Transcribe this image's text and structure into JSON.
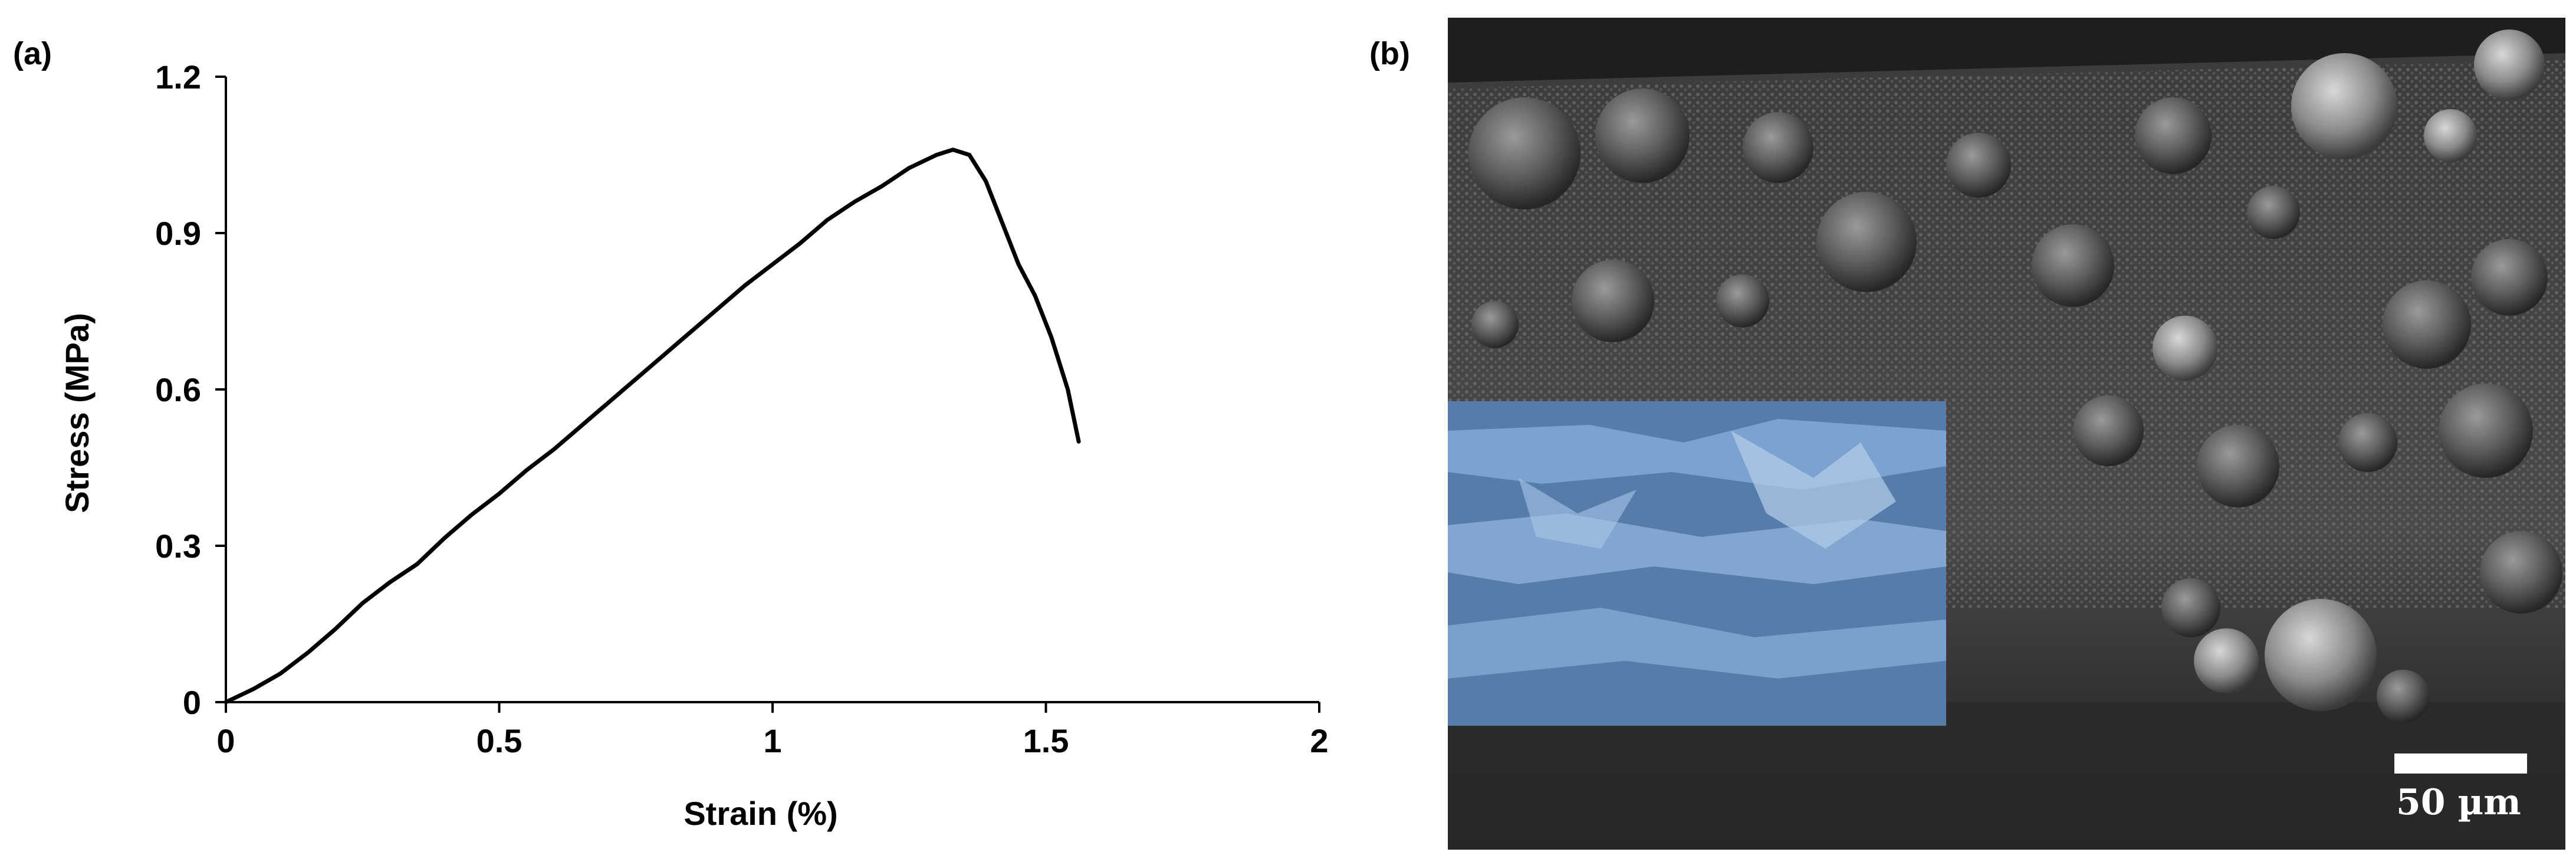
{
  "panel_a_label": "(a)",
  "panel_b_label": "(b)",
  "scale_bar_label": "50 µm",
  "chart_data": {
    "type": "line",
    "title": "",
    "xlabel": "Strain (%)",
    "ylabel": "Stress (MPa)",
    "xlim": [
      0,
      2
    ],
    "ylim": [
      0,
      1.2
    ],
    "xticks": [
      0,
      0.5,
      1,
      1.5,
      2
    ],
    "xtick_labels": [
      "0",
      "0.5",
      "1",
      "1.5",
      "2"
    ],
    "yticks": [
      0,
      0.3,
      0.6,
      0.9,
      1.2
    ],
    "ytick_labels": [
      "0",
      "0.3",
      "0.6",
      "0.9",
      "1.2"
    ],
    "grid": false,
    "line_color": "#000000",
    "series": [
      {
        "x": [
          0,
          0.05,
          0.1,
          0.15,
          0.2,
          0.25,
          0.3,
          0.35,
          0.4,
          0.45,
          0.5,
          0.55,
          0.6,
          0.65,
          0.7,
          0.75,
          0.8,
          0.85,
          0.9,
          0.95,
          1.0,
          1.05,
          1.1,
          1.15,
          1.2,
          1.25,
          1.3,
          1.33,
          1.36,
          1.39,
          1.42,
          1.45,
          1.48,
          1.51,
          1.54,
          1.56
        ],
        "y": [
          0,
          0.025,
          0.055,
          0.095,
          0.14,
          0.19,
          0.23,
          0.265,
          0.315,
          0.36,
          0.4,
          0.445,
          0.485,
          0.53,
          0.575,
          0.62,
          0.665,
          0.71,
          0.755,
          0.8,
          0.84,
          0.88,
          0.925,
          0.96,
          0.99,
          1.025,
          1.05,
          1.06,
          1.05,
          1.0,
          0.92,
          0.84,
          0.78,
          0.7,
          0.6,
          0.5
        ]
      }
    ]
  },
  "micrograph": {
    "description_colors": {
      "background": "#2a2a2a",
      "highlight": "#7ba7d9"
    }
  }
}
